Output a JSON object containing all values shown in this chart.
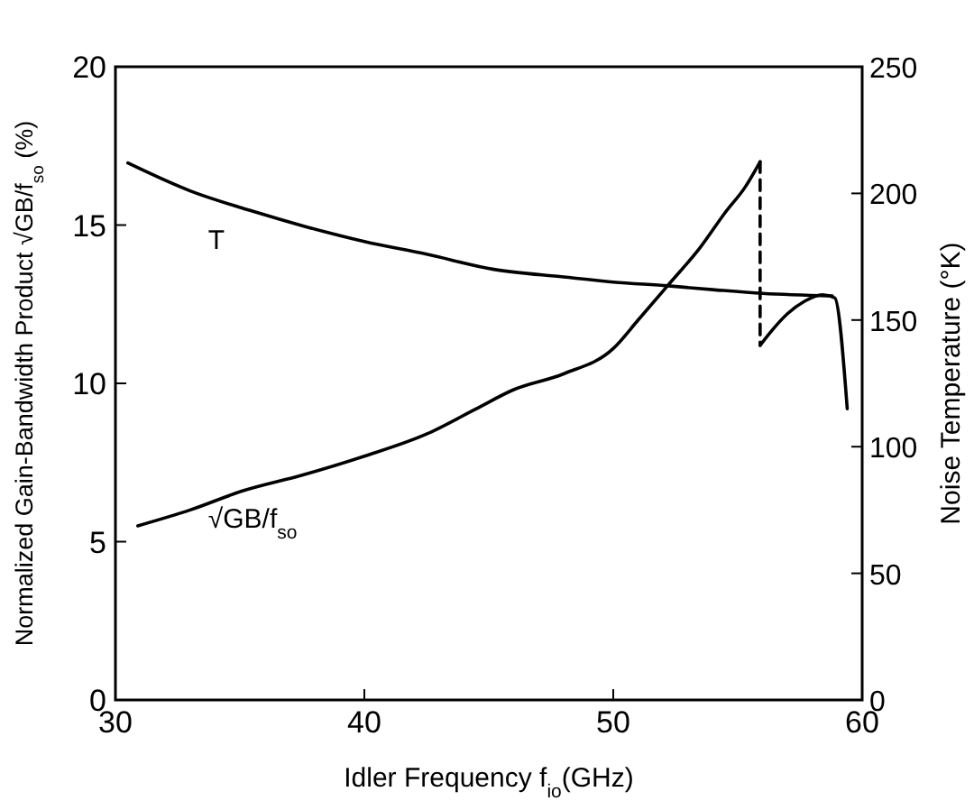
{
  "chart_data": {
    "type": "line",
    "xlabel": "Idler Frequency  f$_{io}$(GHz)",
    "ylabel": "Normalized Gain-Bandwidth Product √GB/f$_{so}$ (%)",
    "y2label": "Noise Temperature (°K)",
    "xlim": [
      30,
      60
    ],
    "xticks": [
      30,
      40,
      50,
      60
    ],
    "ylim": [
      0,
      20
    ],
    "yticks": [
      0,
      5,
      10,
      15,
      20
    ],
    "y2lim": [
      0,
      250
    ],
    "y2ticks": [
      0,
      50,
      100,
      150,
      200,
      250
    ],
    "grid": false,
    "marker": "none",
    "series": [
      {
        "name": "T",
        "color": "#000000",
        "axis": "y2",
        "x": [
          30.5,
          33,
          35.5,
          37.6,
          40,
          42.5,
          45.2,
          48,
          50,
          52.2,
          54,
          56,
          58.8
        ],
        "values": [
          212,
          201,
          193,
          187,
          181,
          176,
          170,
          167,
          165,
          163.5,
          162,
          160.5,
          159.5
        ]
      },
      {
        "name": "√GB/f$_{so}$",
        "color": "#000000",
        "x": [
          30.9,
          33,
          35.1,
          37.5,
          40,
          42.5,
          44.5,
          46,
          48,
          50,
          51,
          52.2,
          53.5,
          54.5,
          55.3,
          55.9
        ],
        "values": [
          5.5,
          6.0,
          6.6,
          7.1,
          7.7,
          8.4,
          9.2,
          9.8,
          10.3,
          11.1,
          12.0,
          13.1,
          14.3,
          15.4,
          16.2,
          17.0
        ]
      },
      {
        "color": "#000000",
        "line_style": "dashed",
        "x": [
          55.9,
          55.9
        ],
        "values": [
          17.0,
          11.2
        ]
      },
      {
        "color": "#000000",
        "x": [
          55.9,
          56.3,
          57,
          57.7,
          58.4,
          58.9,
          59.4
        ],
        "values": [
          11.2,
          11.6,
          12.2,
          12.6,
          12.8,
          12.7,
          9.2
        ]
      }
    ]
  }
}
